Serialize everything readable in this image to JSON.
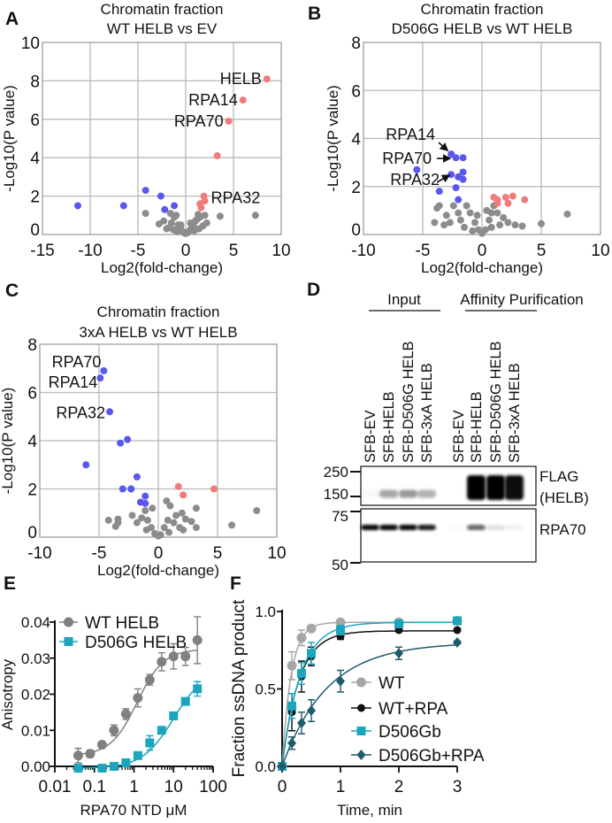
{
  "chart_data": [
    {
      "panel": "A",
      "type": "scatter",
      "title": [
        "Chromatin fraction",
        "WT HELB vs EV"
      ],
      "xlabel": "Log2(fold-change)",
      "ylabel": "-Log10(P value)",
      "xlim": [
        -15,
        10
      ],
      "ylim": [
        0,
        10
      ],
      "xticks": [
        -15,
        -10,
        -5,
        0,
        5,
        10
      ],
      "yticks": [
        0,
        2,
        4,
        6,
        8,
        10
      ],
      "grid": true,
      "colors": {
        "up": "#f07b7b",
        "down": "#5858ee",
        "ns": "#8c8c8c"
      },
      "up": [
        [
          8.5,
          8.1
        ],
        [
          6.0,
          7.0
        ],
        [
          4.5,
          5.9
        ],
        [
          3.3,
          4.1
        ],
        [
          1.9,
          2.0
        ],
        [
          2.0,
          1.75
        ],
        [
          1.5,
          1.6
        ],
        [
          1.6,
          1.4
        ]
      ],
      "down": [
        [
          -11.3,
          1.5
        ],
        [
          -6.5,
          1.5
        ],
        [
          -4.2,
          2.3
        ],
        [
          -2.6,
          2.0
        ],
        [
          -2.2,
          1.3
        ],
        [
          -1.2,
          1.5
        ]
      ],
      "ns": [
        [
          -4.2,
          1.1
        ],
        [
          -2.3,
          0.7
        ],
        [
          -2.8,
          0.55
        ],
        [
          7.3,
          1.0
        ],
        [
          3.6,
          0.95
        ],
        [
          -1.5,
          0.6
        ],
        [
          -1.2,
          0.9
        ],
        [
          -1,
          1.0
        ],
        [
          -0.8,
          0.5
        ],
        [
          -0.6,
          0.3
        ],
        [
          -0.4,
          0.2
        ],
        [
          -0.2,
          0.1
        ],
        [
          0,
          0.05
        ],
        [
          0.2,
          0.1
        ],
        [
          0.4,
          0.2
        ],
        [
          0.6,
          0.35
        ],
        [
          0.8,
          0.5
        ],
        [
          1,
          0.7
        ],
        [
          1.2,
          0.8
        ],
        [
          1.5,
          0.9
        ],
        [
          2,
          1.0
        ],
        [
          -1.8,
          0.35
        ],
        [
          -1.3,
          0.25
        ],
        [
          -0.9,
          0.15
        ],
        [
          0.9,
          0.2
        ],
        [
          1.4,
          0.3
        ],
        [
          1.8,
          0.45
        ],
        [
          0.5,
          0.6
        ],
        [
          -0.5,
          0.5
        ],
        [
          -1.6,
          1.1
        ],
        [
          1.3,
          1.05
        ],
        [
          -2,
          0.3
        ],
        [
          2.2,
          0.6
        ]
      ],
      "labels": [
        {
          "text": "HELB",
          "x": 8.5,
          "y": 8.1
        },
        {
          "text": "RPA14",
          "x": 6.0,
          "y": 7.0
        },
        {
          "text": "RPA70",
          "x": 4.5,
          "y": 5.9
        },
        {
          "text": "RPA32",
          "x": 1.9,
          "y": 2.0
        }
      ]
    },
    {
      "panel": "B",
      "type": "scatter",
      "title": [
        "Chromatin fraction",
        "D506G HELB vs WT HELB"
      ],
      "xlabel": "Log2(fold-change)",
      "ylabel": "-Log10(P value)",
      "xlim": [
        -10,
        10
      ],
      "ylim": [
        0,
        8
      ],
      "xticks": [
        -10,
        -5,
        0,
        5,
        10
      ],
      "yticks": [
        0,
        2,
        4,
        6,
        8
      ],
      "grid": true,
      "colors": {
        "up": "#f07b7b",
        "down": "#5858ee",
        "ns": "#8c8c8c"
      },
      "up": [
        [
          1.0,
          1.55
        ],
        [
          1.3,
          1.45
        ],
        [
          1.3,
          1.3
        ],
        [
          2.0,
          1.55
        ],
        [
          2.2,
          1.3
        ],
        [
          2.6,
          1.6
        ],
        [
          3.6,
          1.45
        ]
      ],
      "down": [
        [
          -2.6,
          3.35
        ],
        [
          -2.2,
          3.2
        ],
        [
          -1.6,
          3.2
        ],
        [
          -5.5,
          2.7
        ],
        [
          -2.6,
          2.5
        ],
        [
          -2.0,
          2.4
        ],
        [
          -1.6,
          2.6
        ],
        [
          -1.6,
          2.3
        ],
        [
          -2.2,
          1.95
        ],
        [
          -3.6,
          1.8
        ],
        [
          -2.0,
          1.45
        ]
      ],
      "ns": [
        [
          7.2,
          0.85
        ],
        [
          5.0,
          0.45
        ],
        [
          3.4,
          0.35
        ],
        [
          -3.0,
          0.8
        ],
        [
          -3.6,
          1.2
        ],
        [
          -3.8,
          1.1
        ],
        [
          -2.4,
          1.2
        ],
        [
          -1.3,
          1.2
        ],
        [
          -1.0,
          0.9
        ],
        [
          -0.6,
          0.5
        ],
        [
          -0.3,
          0.2
        ],
        [
          0,
          0.05
        ],
        [
          0.3,
          0.2
        ],
        [
          0.6,
          0.6
        ],
        [
          0.8,
          0.9
        ],
        [
          1,
          1.2
        ],
        [
          1.3,
          0.9
        ],
        [
          1.8,
          0.7
        ],
        [
          2.2,
          0.5
        ],
        [
          -1.8,
          0.6
        ],
        [
          -2.7,
          0.5
        ],
        [
          -3.2,
          0.4
        ],
        [
          -4,
          0.5
        ],
        [
          -1.5,
          0.3
        ],
        [
          -0.8,
          0.15
        ],
        [
          0.8,
          0.3
        ],
        [
          1.5,
          0.4
        ],
        [
          2.8,
          0.4
        ],
        [
          -2,
          0.9
        ],
        [
          0.4,
          1.0
        ],
        [
          -0.4,
          0.8
        ]
      ],
      "labels": [
        {
          "text": "RPA14",
          "x": -2.6,
          "y": 3.35
        },
        {
          "text": "RPA70",
          "x": -2.2,
          "y": 3.2
        },
        {
          "text": "RPA32",
          "x": -2.0,
          "y": 2.4
        }
      ]
    },
    {
      "panel": "C",
      "type": "scatter",
      "title": [
        "Chromatin fraction",
        "3xA HELB vs WT HELB"
      ],
      "xlabel": "Log2(fold-change)",
      "ylabel": "-Log10(P value)",
      "xlim": [
        -10,
        10
      ],
      "ylim": [
        0,
        8
      ],
      "xticks": [
        -10,
        -5,
        0,
        5,
        10
      ],
      "yticks": [
        0,
        2,
        4,
        6,
        8
      ],
      "grid": true,
      "colors": {
        "up": "#f07b7b",
        "down": "#5858ee",
        "ns": "#8c8c8c"
      },
      "up": [
        [
          1.7,
          2.1
        ],
        [
          2.1,
          1.75
        ],
        [
          4.7,
          2.0
        ]
      ],
      "down": [
        [
          -4.6,
          6.9
        ],
        [
          -4.9,
          6.6
        ],
        [
          -4.1,
          5.2
        ],
        [
          -2.6,
          4.05
        ],
        [
          -3.2,
          3.9
        ],
        [
          -6.1,
          3.0
        ],
        [
          -1.8,
          2.5
        ],
        [
          -3.0,
          2.0
        ],
        [
          -2.3,
          2.0
        ],
        [
          -1.1,
          1.7
        ],
        [
          -1.5,
          1.45
        ],
        [
          -1.1,
          1.4
        ]
      ],
      "ns": [
        [
          8.3,
          1.1
        ],
        [
          6.2,
          0.5
        ],
        [
          3.2,
          1.2
        ],
        [
          3.2,
          0.4
        ],
        [
          2.8,
          0.65
        ],
        [
          2.3,
          0.75
        ],
        [
          2.0,
          1.0
        ],
        [
          1.5,
          0.9
        ],
        [
          1.0,
          1.3
        ],
        [
          1.3,
          0.6
        ],
        [
          0.8,
          0.7
        ],
        [
          0.5,
          0.4
        ],
        [
          0.2,
          0.1
        ],
        [
          0,
          0.05
        ],
        [
          -0.3,
          0.15
        ],
        [
          -0.6,
          0.4
        ],
        [
          -0.9,
          0.7
        ],
        [
          -1.1,
          1.1
        ],
        [
          -1.4,
          0.8
        ],
        [
          -1.8,
          0.6
        ],
        [
          -2.2,
          0.9
        ],
        [
          -4.2,
          0.7
        ],
        [
          -3.4,
          0.75
        ],
        [
          -3.6,
          0.45
        ],
        [
          -3.4,
          0.6
        ],
        [
          -1.0,
          0.3
        ],
        [
          0.9,
          0.2
        ],
        [
          1.8,
          0.4
        ],
        [
          2.1,
          0.3
        ],
        [
          0.7,
          1.5
        ],
        [
          -0.5,
          1.2
        ]
      ],
      "labels": [
        {
          "text": "RPA70",
          "x": -4.6,
          "y": 6.9
        },
        {
          "text": "RPA14",
          "x": -4.9,
          "y": 6.6
        },
        {
          "text": "RPA32",
          "x": -4.1,
          "y": 5.2
        }
      ]
    },
    {
      "panel": "D",
      "type": "blot",
      "groups": [
        "Input",
        "Affinity Purification"
      ],
      "lanes": [
        "SFB-EV",
        "SFB-HELB",
        "SFB-D506G HELB",
        "SFB-3xA HELB",
        "SFB-EV",
        "SFB-HELB",
        "SFB-D506G HELB",
        "SFB-3xA HELB"
      ],
      "markers": [
        "250",
        "150",
        "75",
        "50"
      ],
      "blots": [
        {
          "label": [
            "FLAG",
            "(HELB)"
          ],
          "intensity": [
            0.03,
            0.35,
            0.4,
            0.3,
            0,
            1,
            1,
            0.95
          ]
        },
        {
          "label": [
            "RPA70"
          ],
          "intensity": [
            1,
            1,
            1,
            0.9,
            0.02,
            0.6,
            0.12,
            0.05
          ]
        }
      ]
    },
    {
      "panel": "E",
      "type": "scatter",
      "xlabel": "RPA70 NTD μM",
      "ylabel": "Anisotropy",
      "xscale": "log",
      "xlim": [
        0.01,
        100
      ],
      "ylim": [
        0,
        0.04
      ],
      "xtick_labels": [
        "0.01",
        "0.1",
        "1",
        "10",
        "100"
      ],
      "ytick_values": [
        0,
        0.01,
        0.02,
        0.03,
        0.04
      ],
      "ytick_labels": [
        "0.00",
        "0.01",
        "0.02",
        "0.03",
        "0.04"
      ],
      "legend_position": "top-left",
      "x": [
        0.039,
        0.078,
        0.156,
        0.3125,
        0.625,
        1.25,
        2.5,
        5,
        10,
        20,
        40
      ],
      "series": [
        {
          "name": "WT HELB",
          "color": "#808080",
          "marker": "circle",
          "y": [
            0.003,
            0.0035,
            0.006,
            0.01,
            0.0145,
            0.019,
            0.024,
            0.029,
            0.0305,
            0.0305,
            0.035
          ],
          "err": [
            0.002,
            0.001,
            0.0007,
            0.0015,
            0.0015,
            0.0025,
            0.0015,
            0.0025,
            0.0035,
            0.0025,
            0.0065
          ],
          "fit": {
            "bottom": 0.003,
            "top": 0.0325,
            "ec50": 1.2,
            "hill": 1.3
          }
        },
        {
          "name": "D506G HELB",
          "color": "#1ba6bb",
          "marker": "square",
          "y": [
            -0.0005,
            null,
            -0.0005,
            0,
            0.001,
            0.003,
            0.0065,
            0.01,
            0.014,
            0.018,
            0.0215
          ],
          "err": [
            0.0005,
            null,
            0.0005,
            0.0005,
            0.0005,
            0.0005,
            0.002,
            0.0007,
            0.0007,
            0.001,
            0.002
          ],
          "fit": {
            "bottom": -0.0005,
            "top": 0.027,
            "ec50": 10,
            "hill": 1.1
          }
        }
      ]
    },
    {
      "panel": "F",
      "type": "line",
      "xlabel": "Time, min",
      "ylabel": "Fraction ssDNA product",
      "xlim": [
        0,
        3
      ],
      "ylim": [
        0,
        1.0
      ],
      "xtick_labels": [
        "0",
        "1",
        "2",
        "3"
      ],
      "ytick_values": [
        0,
        0.5,
        1.0
      ],
      "ytick_labels": [
        "0.0",
        "0.5",
        "1.0"
      ],
      "legend_position": "bottom-right",
      "x": [
        0,
        0.167,
        0.333,
        0.5,
        1,
        2,
        3
      ],
      "series": [
        {
          "name": "WT",
          "color": "#a6a6a6",
          "marker": "circle",
          "y": [
            0,
            0.65,
            0.83,
            0.89,
            0.93,
            0.93,
            0.94
          ],
          "err": [
            0,
            0.09,
            0.05,
            0.02,
            0.01,
            0.01,
            0.01
          ],
          "fit": {
            "plateau": 0.93,
            "k": 6.5
          }
        },
        {
          "name": "WT+RPA",
          "color": "#111111",
          "marker": "dot",
          "y": [
            0,
            0.35,
            0.58,
            0.71,
            0.84,
            0.88,
            0.88
          ],
          "err": [
            0,
            0.12,
            0.1,
            0.06,
            0.02,
            0.01,
            0.01
          ],
          "fit": {
            "plateau": 0.875,
            "k": 3.5
          }
        },
        {
          "name": "D506Gb",
          "color": "#1ba6bb",
          "marker": "square",
          "y": [
            0,
            0.39,
            0.6,
            0.73,
            0.88,
            0.92,
            0.94
          ],
          "err": [
            0,
            0.08,
            0.07,
            0.07,
            0.03,
            0.02,
            0.01
          ],
          "fit": {
            "plateau": 0.93,
            "k": 3.2
          }
        },
        {
          "name": "D506Gb+RPA",
          "color": "#1e5b6b",
          "marker": "diamond",
          "y": [
            0,
            0.15,
            0.28,
            0.36,
            0.55,
            0.73,
            0.8
          ],
          "err": [
            0,
            0.04,
            0.07,
            0.07,
            0.07,
            0.04,
            0.01
          ],
          "fit": {
            "plateau": 0.8,
            "k": 1.3
          }
        }
      ]
    }
  ]
}
